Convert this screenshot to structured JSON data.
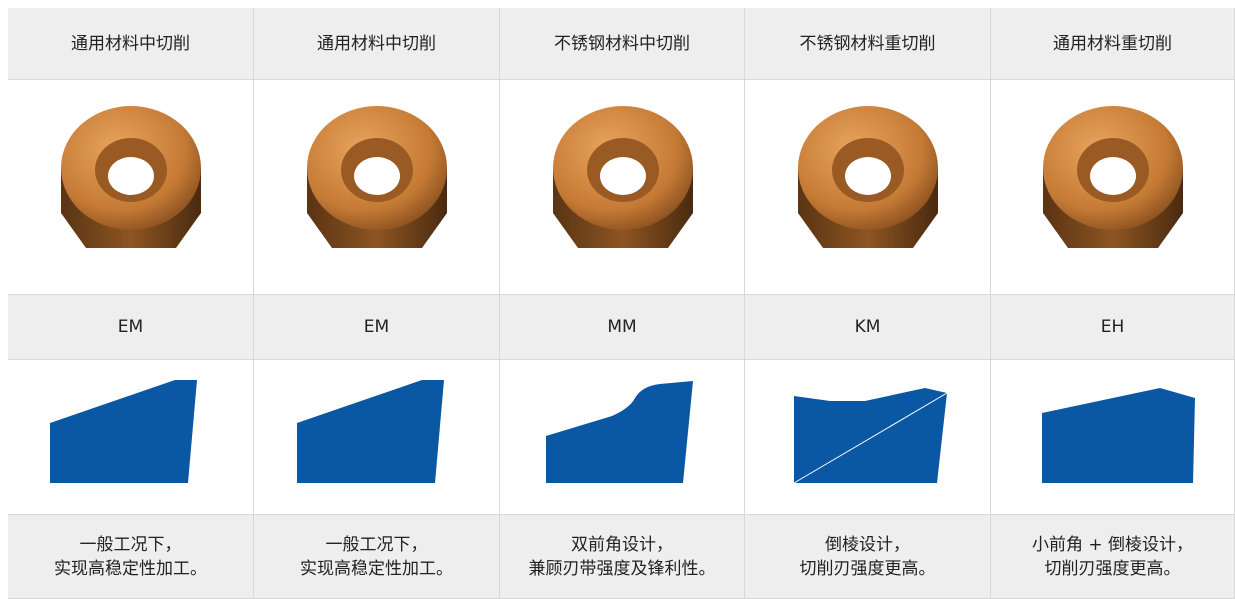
{
  "table": {
    "headers": [
      "通用材料中切削",
      "通用材料中切削",
      "不锈钢材料中切削",
      "不锈钢材料重切削",
      "通用材料重切削"
    ],
    "codes": [
      "EM",
      "EM",
      "MM",
      "KM",
      "EH"
    ],
    "descriptions": [
      [
        "一般工况下，",
        "实现高稳定性加工。"
      ],
      [
        "一般工况下，",
        "实现高稳定性加工。"
      ],
      [
        "双前角设计，",
        "兼顾刃带强度及锋利性。"
      ],
      [
        "倒棱设计，",
        "切削刃强度更高。"
      ],
      [
        "小前角 + 倒棱设计，",
        "切削刃强度更高。"
      ]
    ]
  }
}
